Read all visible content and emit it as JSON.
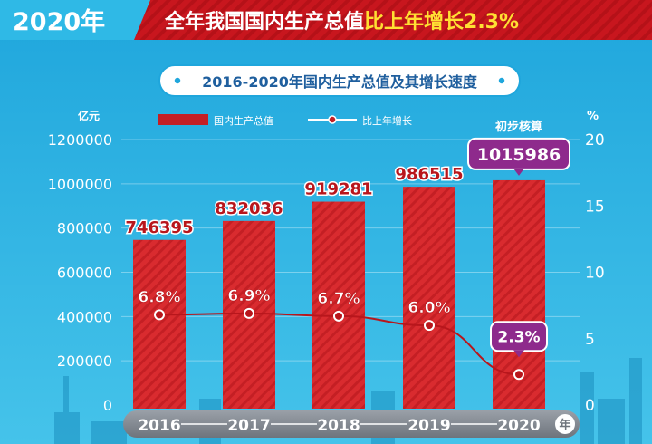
{
  "header": {
    "year_tag": "2020年",
    "headline_white": "全年我国国内生产总值",
    "headline_yellow": "比上年增长2.3%"
  },
  "colors": {
    "background": "#2db4e3",
    "header_bg": "#c8161e",
    "bar": "#d92b2f",
    "line": "#b8161c",
    "highlight": "#8e2a8c",
    "headline_yellow": "#ffe033"
  },
  "chart_data": {
    "type": "bar",
    "title": "2016-2020年国内生产总值及其增长速度",
    "categories": [
      "2016",
      "2017",
      "2018",
      "2019",
      "2020"
    ],
    "x_unit": "年",
    "left_axis": {
      "unit": "亿元",
      "min": 0,
      "max": 1200000,
      "ticks": [
        "0",
        "200000",
        "400000",
        "600000",
        "800000",
        "1000000",
        "1200000"
      ]
    },
    "right_axis": {
      "unit": "%",
      "min": 0,
      "max": 20,
      "ticks": [
        "0",
        "5",
        "10",
        "15",
        "20"
      ]
    },
    "series": [
      {
        "name": "国内生产总值",
        "type": "bar",
        "axis": "left",
        "values": [
          746395,
          832036,
          919281,
          986515,
          1015986
        ],
        "labels": [
          "746395",
          "832036",
          "919281",
          "986515",
          "1015986"
        ]
      },
      {
        "name": "比上年增长",
        "type": "line",
        "axis": "right",
        "values": [
          6.8,
          6.9,
          6.7,
          6.0,
          2.3
        ],
        "labels": [
          "6.8%",
          "6.9%",
          "6.7%",
          "6.0%",
          "2.3%"
        ]
      }
    ],
    "annotation": "初步核算",
    "legend_position": "top"
  }
}
